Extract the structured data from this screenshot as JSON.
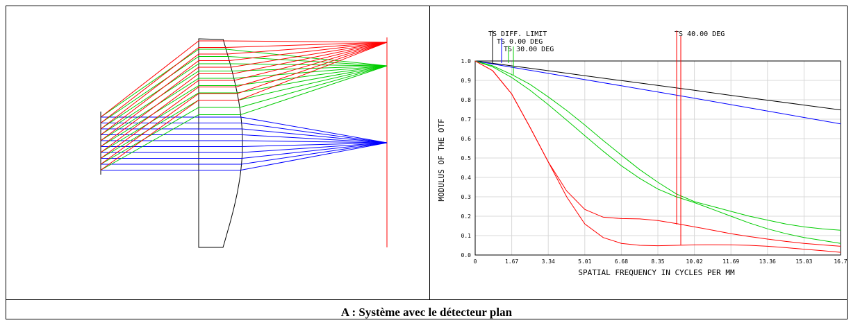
{
  "caption": "A : Système avec le détecteur plan",
  "chart_data": [
    {
      "type": "diagram",
      "title": "",
      "colors": {
        "field_0": "#0000ff",
        "field_30": "#00cc00",
        "field_40": "#ff0000",
        "lens": "#000000",
        "detector": "#ff0000"
      }
    },
    {
      "type": "line",
      "title": "",
      "xlabel": "SPATIAL FREQUENCY IN CYCLES PER MM",
      "ylabel": "MODULUS OF THE OTF",
      "xlim": [
        0,
        16.7
      ],
      "ylim": [
        0,
        1.0
      ],
      "grid": true,
      "x_ticks": [
        "0",
        "1.67",
        "3.34",
        "5.01",
        "6.68",
        "8.35",
        "10.02",
        "11.69",
        "13.36",
        "15.03",
        "16.7"
      ],
      "y_ticks": [
        "0.0",
        "0.1",
        "0.2",
        "0.3",
        "0.4",
        "0.5",
        "0.6",
        "0.7",
        "0.8",
        "0.9",
        "1.0"
      ],
      "legend": [
        "TS DIFF. LIMIT",
        "TS 0.00 DEG",
        "TS 30.00 DEG",
        "TS 40.00 DEG"
      ],
      "series": [
        {
          "name": "TS DIFF. LIMIT",
          "color": "#000000",
          "x": [
            0,
            1.67,
            3.34,
            5.01,
            6.68,
            8.35,
            10.02,
            11.69,
            13.36,
            15.03,
            16.7
          ],
          "y": [
            1.0,
            0.975,
            0.95,
            0.924,
            0.899,
            0.874,
            0.849,
            0.823,
            0.798,
            0.773,
            0.748
          ]
        },
        {
          "name": "TS 0.00 DEG",
          "color": "#0000ff",
          "x": [
            0,
            1.67,
            3.34,
            5.01,
            6.68,
            8.35,
            10.02,
            11.69,
            13.36,
            15.03,
            16.7
          ],
          "y": [
            1.0,
            0.968,
            0.936,
            0.904,
            0.872,
            0.84,
            0.808,
            0.775,
            0.742,
            0.709,
            0.676
          ]
        },
        {
          "name": "TS 30.00 DEG (T)",
          "color": "#00cc00",
          "x": [
            0,
            0.8,
            1.67,
            2.5,
            3.34,
            4.18,
            5.01,
            5.85,
            6.68,
            7.52,
            8.35,
            9.19,
            10.02,
            10.86,
            11.69,
            12.53,
            13.36,
            14.2,
            15.03,
            15.87,
            16.7
          ],
          "y": [
            1.0,
            0.975,
            0.93,
            0.88,
            0.815,
            0.745,
            0.67,
            0.59,
            0.515,
            0.44,
            0.375,
            0.315,
            0.275,
            0.25,
            0.225,
            0.2,
            0.18,
            0.16,
            0.145,
            0.135,
            0.128
          ]
        },
        {
          "name": "TS 30.00 DEG (S)",
          "color": "#00cc00",
          "x": [
            0,
            0.8,
            1.67,
            2.5,
            3.34,
            4.18,
            5.01,
            5.85,
            6.68,
            7.52,
            8.35,
            9.19,
            10.02,
            10.86,
            11.69,
            12.53,
            13.36,
            14.2,
            15.03,
            15.87,
            16.7
          ],
          "y": [
            1.0,
            0.97,
            0.915,
            0.85,
            0.775,
            0.695,
            0.615,
            0.535,
            0.46,
            0.395,
            0.34,
            0.3,
            0.27,
            0.235,
            0.2,
            0.165,
            0.135,
            0.11,
            0.09,
            0.075,
            0.06
          ]
        },
        {
          "name": "TS 40.00 DEG (T)",
          "color": "#ff0000",
          "x": [
            0,
            0.8,
            1.67,
            2.5,
            3.34,
            4.18,
            5.01,
            5.85,
            6.68,
            7.52,
            8.35,
            9.19,
            10.02,
            10.86,
            11.69,
            12.53,
            13.36,
            14.2,
            15.03,
            15.87,
            16.7
          ],
          "y": [
            1.0,
            0.95,
            0.83,
            0.66,
            0.48,
            0.33,
            0.235,
            0.195,
            0.188,
            0.186,
            0.178,
            0.162,
            0.145,
            0.128,
            0.11,
            0.095,
            0.082,
            0.07,
            0.06,
            0.052,
            0.045
          ]
        },
        {
          "name": "TS 40.00 DEG (S)",
          "color": "#ff0000",
          "x": [
            0,
            0.8,
            1.67,
            2.5,
            3.34,
            4.18,
            5.01,
            5.85,
            6.68,
            7.52,
            8.35,
            9.19,
            10.02,
            10.86,
            11.69,
            12.53,
            13.36,
            14.2,
            15.03,
            15.87,
            16.7
          ],
          "y": [
            1.0,
            0.95,
            0.83,
            0.66,
            0.48,
            0.3,
            0.16,
            0.09,
            0.06,
            0.05,
            0.048,
            0.05,
            0.052,
            0.053,
            0.052,
            0.05,
            0.045,
            0.038,
            0.03,
            0.022,
            0.014
          ]
        }
      ]
    }
  ]
}
